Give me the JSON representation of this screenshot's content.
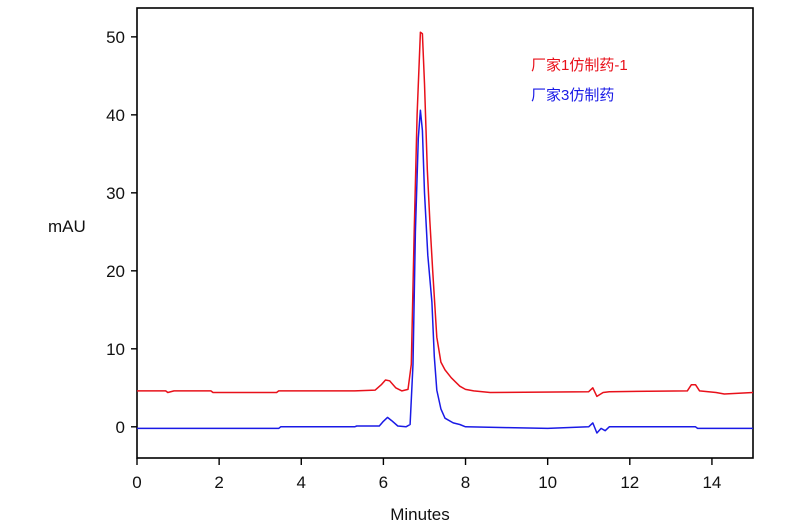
{
  "chart_data": {
    "type": "line",
    "title": "",
    "xlabel": "Minutes",
    "ylabel": "mAU",
    "xlim": [
      0,
      15
    ],
    "ylim": [
      -4,
      53.7
    ],
    "xticks": [
      0,
      2,
      4,
      6,
      8,
      10,
      12,
      14
    ],
    "yticks": [
      0,
      10,
      20,
      30,
      40,
      50
    ],
    "grid": false,
    "legend_position": "top-right",
    "series": [
      {
        "name": "厂家1仿制药-1",
        "color": "#e8101a",
        "points": [
          [
            0,
            4.6
          ],
          [
            0.7,
            4.6
          ],
          [
            0.75,
            4.4
          ],
          [
            0.9,
            4.6
          ],
          [
            1.8,
            4.6
          ],
          [
            1.85,
            4.4
          ],
          [
            3.4,
            4.4
          ],
          [
            3.45,
            4.6
          ],
          [
            5.3,
            4.6
          ],
          [
            5.8,
            4.7
          ],
          [
            5.95,
            5.4
          ],
          [
            6.05,
            6.0
          ],
          [
            6.15,
            5.9
          ],
          [
            6.3,
            5.0
          ],
          [
            6.45,
            4.6
          ],
          [
            6.6,
            4.8
          ],
          [
            6.68,
            8
          ],
          [
            6.75,
            25
          ],
          [
            6.82,
            40
          ],
          [
            6.9,
            50.6
          ],
          [
            6.95,
            50.4
          ],
          [
            7.0,
            44
          ],
          [
            7.07,
            33
          ],
          [
            7.13,
            26.5
          ],
          [
            7.2,
            20
          ],
          [
            7.3,
            11.5
          ],
          [
            7.4,
            8.3
          ],
          [
            7.5,
            7.3
          ],
          [
            7.65,
            6.3
          ],
          [
            7.86,
            5.2
          ],
          [
            8.0,
            4.8
          ],
          [
            8.2,
            4.6
          ],
          [
            8.6,
            4.4
          ],
          [
            11.0,
            4.5
          ],
          [
            11.1,
            5.0
          ],
          [
            11.2,
            3.9
          ],
          [
            11.35,
            4.4
          ],
          [
            11.5,
            4.5
          ],
          [
            13.4,
            4.6
          ],
          [
            13.5,
            5.4
          ],
          [
            13.6,
            5.4
          ],
          [
            13.7,
            4.6
          ],
          [
            14.1,
            4.4
          ],
          [
            14.3,
            4.2
          ],
          [
            15,
            4.4
          ]
        ]
      },
      {
        "name": "厂家3仿制药",
        "color": "#1a1ae6",
        "points": [
          [
            0,
            -0.2
          ],
          [
            3.45,
            -0.2
          ],
          [
            3.5,
            0
          ],
          [
            5.3,
            0
          ],
          [
            5.35,
            0.1
          ],
          [
            5.9,
            0.1
          ],
          [
            6.0,
            0.7
          ],
          [
            6.1,
            1.2
          ],
          [
            6.2,
            0.8
          ],
          [
            6.35,
            0.1
          ],
          [
            6.55,
            0.0
          ],
          [
            6.65,
            0.3
          ],
          [
            6.72,
            8
          ],
          [
            6.78,
            25
          ],
          [
            6.85,
            37
          ],
          [
            6.9,
            40.6
          ],
          [
            6.95,
            38
          ],
          [
            7.0,
            30
          ],
          [
            7.08,
            22
          ],
          [
            7.18,
            16
          ],
          [
            7.24,
            9
          ],
          [
            7.3,
            4.7
          ],
          [
            7.4,
            2.3
          ],
          [
            7.5,
            1.1
          ],
          [
            7.7,
            0.5
          ],
          [
            7.86,
            0.3
          ],
          [
            8.0,
            0.0
          ],
          [
            9.0,
            -0.1
          ],
          [
            10.0,
            -0.2
          ],
          [
            11.0,
            0.0
          ],
          [
            11.1,
            0.5
          ],
          [
            11.2,
            -0.8
          ],
          [
            11.3,
            -0.2
          ],
          [
            11.4,
            -0.5
          ],
          [
            11.5,
            0.0
          ],
          [
            13.6,
            0.0
          ],
          [
            13.65,
            -0.2
          ],
          [
            15,
            -0.2
          ]
        ]
      }
    ]
  }
}
